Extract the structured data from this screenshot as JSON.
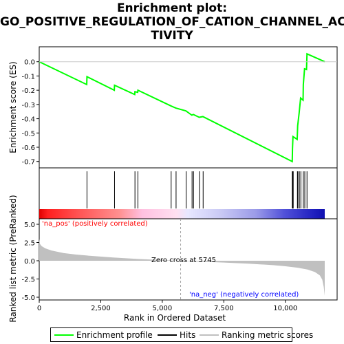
{
  "title_line1": "Enrichment plot:",
  "title_line2": "GO_POSITIVE_REGULATION_OF_CATION_CHANNEL_AC",
  "title_line3": "TIVITY",
  "legend": {
    "enrichment_profile": "Enrichment profile",
    "hits": "Hits",
    "ranking_metric": "Ranking metric scores"
  },
  "colors": {
    "enrichment_line": "#00ff00",
    "hits": "#000000",
    "ranking_fill": "#c0c0c0",
    "pos_label": "#ff0000",
    "neg_label": "#0000ff"
  },
  "chart_data": [
    {
      "type": "line",
      "panel": "enrichment",
      "ylabel": "Enrichment score (ES)",
      "ylim": [
        -0.74,
        0.1
      ],
      "yticks": [
        0.0,
        -0.1,
        -0.2,
        -0.3,
        -0.4,
        -0.5,
        -0.6,
        -0.7
      ],
      "ytick_labels": [
        "0.0",
        "-0.1",
        "-0.2",
        "-0.3",
        "-0.4",
        "-0.5",
        "-0.6",
        "-0.7"
      ],
      "grid": false,
      "x": [
        0,
        1930,
        1940,
        3050,
        3060,
        3880,
        3890,
        4000,
        4010,
        5350,
        5550,
        5960,
        6200,
        6260,
        6500,
        6650,
        10280,
        10290,
        10310,
        10480,
        10500,
        10560,
        10620,
        10720,
        10730,
        10780,
        10860,
        10880,
        11600
      ],
      "y": [
        0.0,
        -0.16,
        -0.105,
        -0.2,
        -0.165,
        -0.23,
        -0.21,
        -0.215,
        -0.2,
        -0.31,
        -0.325,
        -0.345,
        -0.375,
        -0.37,
        -0.39,
        -0.385,
        -0.7,
        -0.61,
        -0.525,
        -0.545,
        -0.45,
        -0.36,
        -0.255,
        -0.27,
        -0.16,
        -0.05,
        -0.055,
        0.055,
        0.0
      ]
    },
    {
      "type": "scatter",
      "panel": "hits",
      "x": [
        1940,
        3060,
        3890,
        4010,
        5360,
        5560,
        5970,
        6210,
        6270,
        6510,
        6660,
        10280,
        10300,
        10320,
        10490,
        10510,
        10570,
        10630,
        10730,
        10790,
        10880
      ]
    },
    {
      "type": "area",
      "panel": "ranking",
      "xlabel": "Rank in Ordered Dataset",
      "ylabel": "Ranked list metric (PreRanked)",
      "xlim": [
        0,
        11600
      ],
      "ylim": [
        -5.0,
        5.0
      ],
      "xticks": [
        0,
        2500,
        5000,
        7500,
        10000
      ],
      "xtick_labels": [
        "0",
        "2,500",
        "5,000",
        "7,500",
        "10,000"
      ],
      "yticks": [
        5.0,
        2.5,
        0.0,
        -2.5,
        -5.0
      ],
      "ytick_labels": [
        "5.0",
        "2.5",
        "0.0",
        "-2.5",
        "-5.0"
      ],
      "x": [
        0,
        30,
        100,
        250,
        500,
        1000,
        1500,
        2000,
        3000,
        4000,
        5000,
        5745,
        6500,
        7500,
        8500,
        9500,
        10000,
        10500,
        10900,
        11200,
        11400,
        11500,
        11560,
        11600
      ],
      "y": [
        3.0,
        2.3,
        2.0,
        1.7,
        1.4,
        1.05,
        0.85,
        0.7,
        0.45,
        0.25,
        0.1,
        0.0,
        -0.12,
        -0.25,
        -0.4,
        -0.6,
        -0.75,
        -0.95,
        -1.2,
        -1.55,
        -2.0,
        -2.6,
        -3.6,
        -4.8
      ],
      "zero_cross_text": "Zero cross at 5745",
      "zero_cross": 5745,
      "pos_label": "'na_pos' (positively correlated)",
      "neg_label": "'na_neg' (negatively correlated)"
    }
  ]
}
